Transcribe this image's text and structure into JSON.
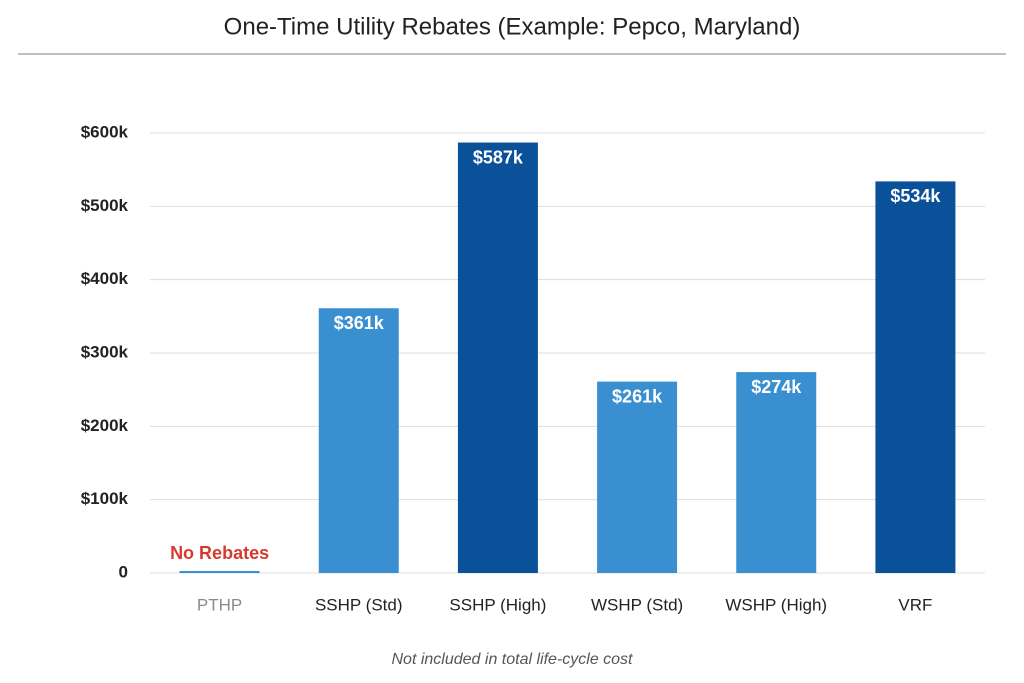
{
  "chart_data": {
    "type": "bar",
    "title": "One-Time Utility Rebates (Example: Pepco, Maryland)",
    "categories": [
      "PTHP",
      "SSHP (Std)",
      "SSHP (High)",
      "WSHP (Std)",
      "WSHP (High)",
      "VRF"
    ],
    "values": [
      0,
      361000,
      587000,
      261000,
      274000,
      534000
    ],
    "value_labels": [
      "No Rebates",
      "$361k",
      "$587k",
      "$261k",
      "$274k",
      "$534k"
    ],
    "value_label_colors": [
      "#d63a2f",
      "#ffffff",
      "#ffffff",
      "#ffffff",
      "#ffffff",
      "#ffffff"
    ],
    "colors": [
      "#3a8fd0",
      "#3a8fd0",
      "#0b519a",
      "#3a8fd0",
      "#3a8fd0",
      "#0b519a"
    ],
    "category_colors": [
      "#8a8a8a",
      "#222222",
      "#222222",
      "#222222",
      "#222222",
      "#222222"
    ],
    "ylim": [
      0,
      600000
    ],
    "yticks": [
      0,
      {
        "value": 100000,
        "label": "$100k"
      },
      {
        "value": 200000,
        "label": "$200k"
      },
      {
        "value": 300000,
        "label": "$300k"
      },
      {
        "value": 400000,
        "label": "$400k"
      },
      {
        "value": 500000,
        "label": "$500k"
      },
      {
        "value": 600000,
        "label": "$600k"
      }
    ],
    "grid": true,
    "note": "Not included in total life-cycle cost"
  }
}
